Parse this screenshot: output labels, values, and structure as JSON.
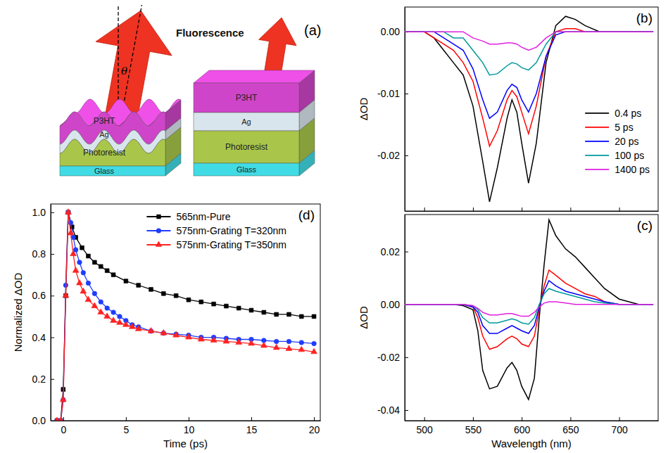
{
  "diagram": {
    "title": "(a)",
    "annotation": "Fluorescence",
    "angle": "θ",
    "stacks": [
      {
        "layers": [
          "P3HT",
          "Ag",
          "Photoresist",
          "Glass"
        ]
      },
      {
        "layers": [
          "P3HT",
          "Ag",
          "Photoresist",
          "Glass"
        ]
      }
    ]
  },
  "chart_data": [
    {
      "type": "line",
      "title": "(b)",
      "y_label": "ΔOD",
      "x": [
        480,
        500,
        510,
        520,
        530,
        540,
        550,
        560,
        567,
        575,
        585,
        590,
        595,
        600,
        607,
        615,
        625,
        635,
        645,
        655,
        665,
        680,
        700,
        720,
        735
      ],
      "xlim": [
        480,
        740
      ],
      "xticks": [
        500,
        550,
        600,
        650,
        700
      ],
      "ylim": [
        -0.029,
        0.004
      ],
      "yticks": [
        {
          "value": 0,
          "label": "0.00"
        },
        -0.01,
        -0.02
      ],
      "tick_labels": "y",
      "legend": "right",
      "series": [
        {
          "name": "0.4 ps",
          "color": "#000000",
          "values": [
            0,
            0,
            -0.001,
            -0.003,
            -0.005,
            -0.007,
            -0.012,
            -0.021,
            -0.0275,
            -0.022,
            -0.014,
            -0.011,
            -0.013,
            -0.018,
            -0.0245,
            -0.018,
            -0.005,
            0.001,
            0.0025,
            0.002,
            0.001,
            0,
            0,
            0,
            0
          ]
        },
        {
          "name": "5 ps",
          "color": "#ff0000",
          "values": [
            0,
            0,
            -0.001,
            -0.002,
            -0.003,
            -0.005,
            -0.008,
            -0.014,
            -0.0185,
            -0.016,
            -0.011,
            -0.0095,
            -0.0105,
            -0.013,
            -0.0165,
            -0.012,
            -0.004,
            0,
            0.0005,
            0.0005,
            0,
            0,
            0,
            0,
            0
          ]
        },
        {
          "name": "20 ps",
          "color": "#0000ff",
          "values": [
            0,
            0,
            0,
            -0.001,
            -0.002,
            -0.003,
            -0.006,
            -0.011,
            -0.014,
            -0.013,
            -0.0095,
            -0.0085,
            -0.009,
            -0.011,
            -0.013,
            -0.01,
            -0.004,
            -0.0005,
            0,
            0,
            0,
            0,
            0,
            0,
            0
          ]
        },
        {
          "name": "100 ps",
          "color": "#009a9a",
          "values": [
            0,
            0,
            0,
            0,
            -0.001,
            -0.001,
            -0.003,
            -0.005,
            -0.007,
            -0.0068,
            -0.0055,
            -0.005,
            -0.0052,
            -0.0058,
            -0.0062,
            -0.005,
            -0.002,
            0,
            0,
            0,
            0,
            0,
            0,
            0,
            0
          ]
        },
        {
          "name": "1400 ps",
          "color": "#e020e0",
          "values": [
            0,
            0,
            0,
            0,
            0,
            0,
            -0.001,
            -0.0015,
            -0.002,
            -0.002,
            -0.0018,
            -0.0018,
            -0.002,
            -0.0025,
            -0.003,
            -0.0025,
            -0.001,
            0,
            0,
            0,
            0,
            0,
            0,
            0,
            0
          ]
        }
      ]
    },
    {
      "type": "line",
      "title": "(c)",
      "x_label": "Wavelength (nm)",
      "y_label": "ΔOD",
      "x": [
        480,
        500,
        510,
        520,
        530,
        540,
        550,
        555,
        560,
        567,
        575,
        585,
        590,
        595,
        600,
        607,
        613,
        618,
        623,
        628,
        635,
        645,
        655,
        665,
        675,
        685,
        700,
        720,
        735
      ],
      "xlim": [
        480,
        740
      ],
      "xticks": [
        500,
        550,
        600,
        650,
        700
      ],
      "ylim": [
        -0.044,
        0.034
      ],
      "yticks": [
        0.02,
        {
          "value": 0,
          "label": "0.00"
        },
        -0.02,
        -0.04
      ],
      "series": [
        {
          "color": "#000000",
          "values": [
            0,
            0,
            0,
            0,
            0,
            -0.0005,
            -0.002,
            -0.01,
            -0.025,
            -0.032,
            -0.031,
            -0.024,
            -0.022,
            -0.025,
            -0.031,
            -0.036,
            -0.028,
            -0.005,
            0.015,
            0.032,
            0.026,
            0.021,
            0.018,
            0.014,
            0.01,
            0.006,
            0.002,
            0,
            0
          ]
        },
        {
          "color": "#ff0000",
          "values": [
            0,
            0,
            0,
            0,
            0,
            0,
            -0.001,
            -0.005,
            -0.012,
            -0.017,
            -0.016,
            -0.013,
            -0.012,
            -0.013,
            -0.015,
            -0.016,
            -0.012,
            -0.002,
            0.007,
            0.013,
            0.011,
            0.008,
            0.006,
            0.004,
            0.003,
            0.001,
            0,
            0,
            0
          ]
        },
        {
          "color": "#0000ff",
          "values": [
            0,
            0,
            0,
            0,
            0,
            0,
            -0.001,
            -0.003,
            -0.008,
            -0.011,
            -0.011,
            -0.009,
            -0.008,
            -0.009,
            -0.01,
            -0.011,
            -0.008,
            -0.001,
            0.005,
            0.009,
            0.007,
            0.005,
            0.004,
            0.003,
            0.002,
            0.001,
            0,
            0,
            0
          ]
        },
        {
          "color": "#009a9a",
          "values": [
            0,
            0,
            0,
            0,
            0,
            0,
            -0.0005,
            -0.002,
            -0.005,
            -0.007,
            -0.007,
            -0.006,
            -0.0055,
            -0.006,
            -0.007,
            -0.0075,
            -0.005,
            0,
            0.004,
            0.006,
            0.005,
            0.004,
            0.003,
            0.002,
            0.001,
            0.0005,
            0,
            0,
            0
          ]
        },
        {
          "color": "#e020e0",
          "values": [
            0,
            0,
            0,
            0,
            0,
            0,
            -0.0005,
            -0.0015,
            -0.003,
            -0.004,
            -0.004,
            -0.0035,
            -0.0035,
            -0.004,
            -0.0045,
            -0.0045,
            -0.003,
            -0.001,
            0.0005,
            0.001,
            0.001,
            0.0005,
            0,
            0,
            0,
            0,
            0,
            0,
            0
          ]
        }
      ]
    },
    {
      "type": "line",
      "title": "(d)",
      "x_label": "Time (ps)",
      "y_label": "Normalized ΔOD",
      "xlim": [
        -1,
        20.5
      ],
      "xticks": [
        0,
        5,
        10,
        15,
        20
      ],
      "ylim": [
        0,
        1.04
      ],
      "yticks": [
        {
          "value": 0,
          "label": "0.0"
        },
        0.2,
        0.4,
        0.6,
        0.8,
        {
          "value": 1,
          "label": "1.0"
        }
      ],
      "legend": "upper right",
      "series": [
        {
          "name": "565nm-Pure",
          "color": "#000000",
          "marker": "square",
          "x": [
            -0.5,
            -0.2,
            0,
            0.2,
            0.4,
            0.7,
            1,
            1.5,
            2,
            2.5,
            3,
            3.5,
            4,
            5,
            6,
            7,
            8,
            9,
            10,
            11,
            12,
            13,
            14,
            15,
            16,
            17,
            18,
            19,
            20
          ],
          "values": [
            0,
            0,
            0.15,
            0.6,
            1.0,
            0.93,
            0.88,
            0.83,
            0.79,
            0.76,
            0.74,
            0.72,
            0.7,
            0.67,
            0.65,
            0.63,
            0.61,
            0.6,
            0.58,
            0.57,
            0.56,
            0.55,
            0.54,
            0.53,
            0.52,
            0.51,
            0.51,
            0.5,
            0.5
          ]
        },
        {
          "name": "575nm-Grating T=320nm",
          "color": "#1e3cff",
          "marker": "circle",
          "x": [
            -0.5,
            -0.2,
            0,
            0.2,
            0.4,
            0.6,
            0.8,
            1,
            1.3,
            1.6,
            2,
            2.5,
            3,
            3.5,
            4,
            4.5,
            5,
            5.5,
            6,
            7,
            8,
            9,
            10,
            11,
            12,
            13,
            14,
            15,
            16,
            17,
            18,
            19,
            20
          ],
          "values": [
            0,
            0,
            0.1,
            0.65,
            1.0,
            0.95,
            0.88,
            0.82,
            0.76,
            0.71,
            0.66,
            0.61,
            0.57,
            0.54,
            0.52,
            0.5,
            0.48,
            0.46,
            0.45,
            0.43,
            0.42,
            0.415,
            0.41,
            0.4,
            0.4,
            0.395,
            0.39,
            0.39,
            0.385,
            0.38,
            0.38,
            0.375,
            0.37
          ]
        },
        {
          "name": "575nm-Grating T=350nm",
          "color": "#ff2222",
          "marker": "triangle",
          "x": [
            -0.5,
            -0.2,
            0,
            0.2,
            0.4,
            0.6,
            0.8,
            1,
            1.3,
            1.6,
            2,
            2.5,
            3,
            3.5,
            4,
            4.5,
            5,
            5.5,
            6,
            7,
            8,
            9,
            10,
            11,
            12,
            13,
            14,
            15,
            16,
            17,
            18,
            19,
            20
          ],
          "values": [
            0,
            0,
            0.1,
            0.6,
            1.0,
            0.9,
            0.8,
            0.72,
            0.66,
            0.62,
            0.58,
            0.55,
            0.52,
            0.5,
            0.48,
            0.47,
            0.46,
            0.45,
            0.44,
            0.43,
            0.42,
            0.41,
            0.4,
            0.39,
            0.385,
            0.38,
            0.375,
            0.37,
            0.36,
            0.35,
            0.345,
            0.34,
            0.33
          ]
        }
      ]
    }
  ]
}
